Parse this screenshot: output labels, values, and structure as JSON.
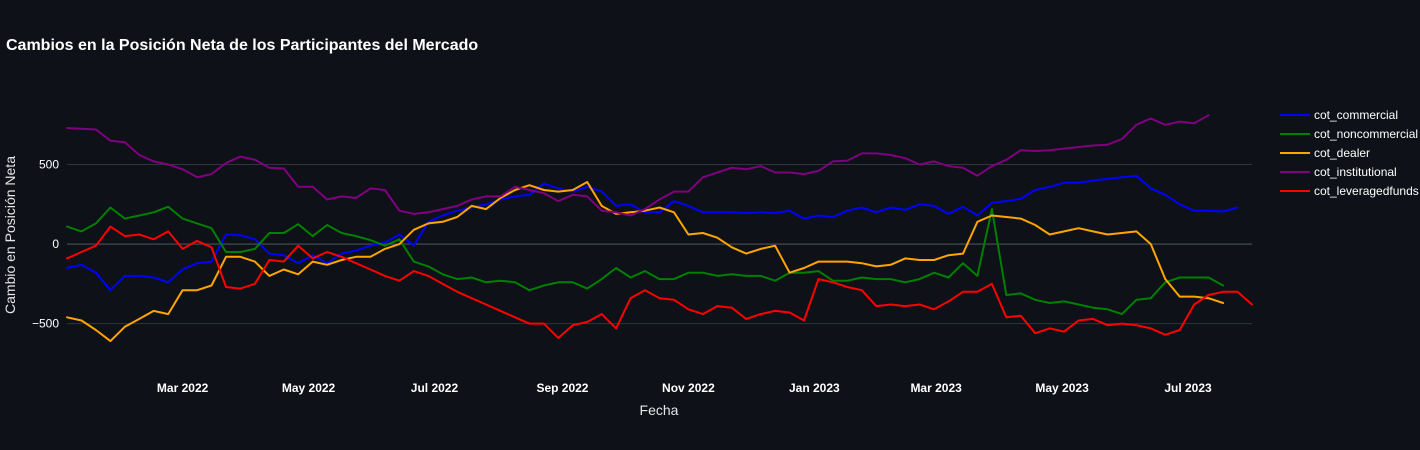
{
  "chart_data": {
    "type": "line",
    "title": "Cambios en la Posición Neta de los Participantes del Mercado",
    "xlabel": "Fecha",
    "ylabel": "Cambio en Posición Neta",
    "x_start": "2022-01-04",
    "x_step_days": 7,
    "xlim": [
      "2022-01-04",
      "2023-08-01"
    ],
    "ylim": [
      -760,
      1000
    ],
    "x_ticks": [
      {
        "date": "2022-03-01",
        "label": "Mar 2022"
      },
      {
        "date": "2022-05-01",
        "label": "May 2022"
      },
      {
        "date": "2022-07-01",
        "label": "Jul 2022"
      },
      {
        "date": "2022-09-01",
        "label": "Sep 2022"
      },
      {
        "date": "2022-11-01",
        "label": "Nov 2022"
      },
      {
        "date": "2023-01-01",
        "label": "Jan 2023"
      },
      {
        "date": "2023-03-01",
        "label": "Mar 2023"
      },
      {
        "date": "2023-05-01",
        "label": "May 2023"
      },
      {
        "date": "2023-07-01",
        "label": "Jul 2023"
      }
    ],
    "y_ticks": [
      {
        "value": 500,
        "label": "500"
      },
      {
        "value": 0,
        "label": "0"
      },
      {
        "value": -500,
        "label": "−500"
      }
    ],
    "grid": true,
    "legend_position": "right",
    "series": [
      {
        "name": "cot_commercial",
        "color": "#0000ff",
        "values": [
          -150,
          -130,
          -180,
          -290,
          -200,
          -200,
          -210,
          -240,
          -160,
          -120,
          -110,
          60,
          55,
          30,
          -60,
          -70,
          -120,
          -70,
          -120,
          -60,
          -40,
          -10,
          10,
          60,
          -10,
          140,
          180,
          210,
          230,
          250,
          280,
          300,
          310,
          380,
          350,
          330,
          360,
          330,
          240,
          250,
          200,
          200,
          270,
          240,
          200,
          200,
          200,
          195,
          200,
          195,
          210,
          160,
          180,
          170,
          210,
          230,
          200,
          230,
          215,
          250,
          240,
          190,
          235,
          180,
          260,
          270,
          285,
          340,
          360,
          385,
          385,
          400,
          410,
          420,
          430,
          350,
          310,
          250,
          210,
          210,
          205,
          230
        ]
      },
      {
        "name": "cot_noncommercial",
        "color": "#008000",
        "values": [
          110,
          80,
          130,
          230,
          160,
          180,
          200,
          235,
          160,
          130,
          100,
          -50,
          -50,
          -30,
          70,
          70,
          125,
          50,
          120,
          70,
          50,
          25,
          -10,
          30,
          -110,
          -140,
          -190,
          -220,
          -210,
          -240,
          -230,
          -240,
          -290,
          -260,
          -240,
          -240,
          -280,
          -220,
          -150,
          -210,
          -170,
          -220,
          -220,
          -180,
          -180,
          -200,
          -190,
          -200,
          -200,
          -230,
          -180,
          -180,
          -170,
          -230,
          -230,
          -210,
          -220,
          -220,
          -240,
          -220,
          -180,
          -210,
          -120,
          -200,
          220,
          -320,
          -310,
          -350,
          -370,
          -360,
          -380,
          -400,
          -410,
          -440,
          -350,
          -340,
          -240,
          -210,
          -210,
          -210,
          -260
        ]
      },
      {
        "name": "cot_dealer",
        "color": "#ffa500",
        "values": [
          -460,
          -480,
          -540,
          -610,
          -520,
          -470,
          -420,
          -440,
          -290,
          -290,
          -260,
          -80,
          -80,
          -110,
          -200,
          -160,
          -190,
          -110,
          -130,
          -100,
          -80,
          -80,
          -30,
          0,
          90,
          130,
          140,
          170,
          240,
          220,
          290,
          340,
          370,
          340,
          330,
          340,
          390,
          240,
          190,
          200,
          210,
          230,
          200,
          60,
          70,
          40,
          -20,
          -60,
          -30,
          -10,
          -180,
          -150,
          -110,
          -110,
          -110,
          -120,
          -140,
          -130,
          -90,
          -100,
          -100,
          -70,
          -60,
          140,
          180,
          170,
          160,
          120,
          60,
          80,
          100,
          80,
          60,
          70,
          80,
          0,
          -220,
          -330,
          -330,
          -340,
          -370
        ]
      },
      {
        "name": "cot_institutional",
        "color": "#800080",
        "values": [
          730,
          725,
          720,
          650,
          640,
          560,
          520,
          500,
          470,
          420,
          440,
          510,
          550,
          530,
          480,
          475,
          360,
          360,
          280,
          300,
          290,
          350,
          340,
          210,
          190,
          200,
          220,
          240,
          280,
          300,
          300,
          360,
          340,
          320,
          270,
          310,
          300,
          210,
          200,
          180,
          220,
          280,
          330,
          330,
          420,
          450,
          480,
          470,
          490,
          450,
          450,
          440,
          460,
          520,
          525,
          570,
          570,
          560,
          540,
          500,
          520,
          490,
          480,
          430,
          490,
          530,
          590,
          585,
          590,
          600,
          610,
          620,
          625,
          660,
          750,
          790,
          750,
          770,
          760,
          810
        ]
      },
      {
        "name": "cot_leveragedfunds",
        "color": "#ff0000",
        "values": [
          -90,
          -50,
          -10,
          110,
          50,
          60,
          30,
          80,
          -30,
          20,
          -20,
          -270,
          -280,
          -250,
          -100,
          -110,
          -10,
          -90,
          -50,
          -80,
          -120,
          -160,
          -200,
          -230,
          -170,
          -200,
          -250,
          -300,
          -340,
          -380,
          -420,
          -460,
          -500,
          -500,
          -590,
          -510,
          -490,
          -440,
          -530,
          -340,
          -290,
          -340,
          -350,
          -410,
          -440,
          -390,
          -400,
          -470,
          -440,
          -420,
          -430,
          -480,
          -220,
          -240,
          -270,
          -290,
          -390,
          -380,
          -390,
          -380,
          -410,
          -360,
          -300,
          -300,
          -250,
          -460,
          -450,
          -560,
          -530,
          -550,
          -480,
          -470,
          -510,
          -500,
          -510,
          -530,
          -570,
          -540,
          -380,
          -320,
          -300,
          -300,
          -380
        ]
      }
    ]
  }
}
